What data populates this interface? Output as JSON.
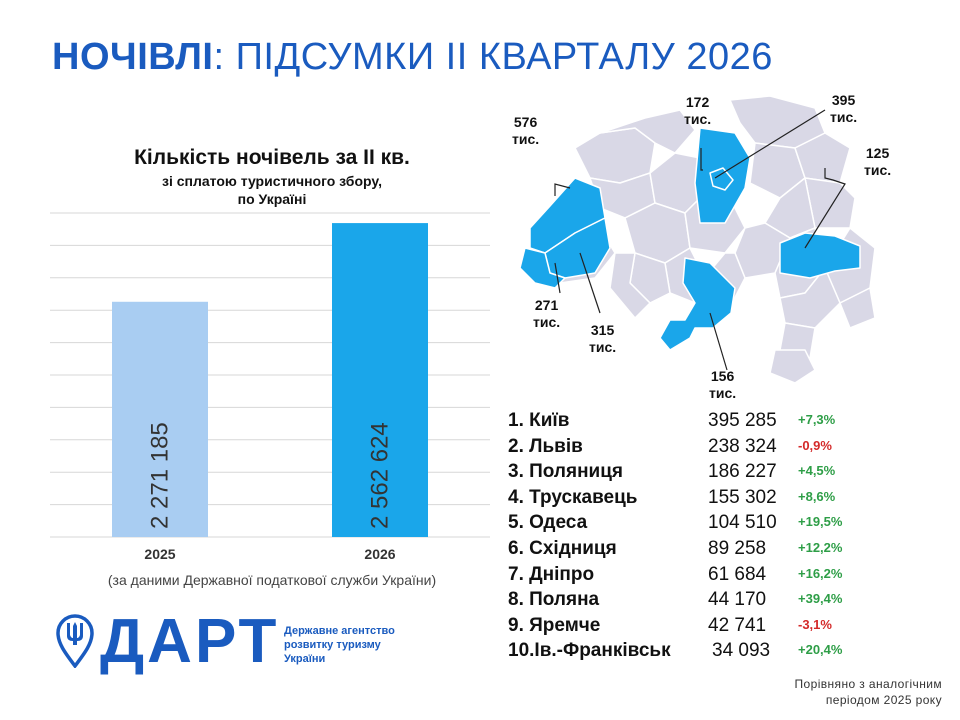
{
  "header": {
    "title_bold": "НОЧІВЛІ",
    "title_rest": ": ПІДСУМКИ ІІ КВАРТАЛУ 2026"
  },
  "chart_data": {
    "type": "bar",
    "title": "Кількість ночівель за ІІ кв.",
    "subtitle_1": "зі сплатою туристичного збору,",
    "subtitle_2": "по Україні",
    "categories": [
      "2025",
      "2026"
    ],
    "values": [
      2271185,
      2562624
    ],
    "value_labels": [
      "2 271 185",
      "2 562 624"
    ],
    "colors": [
      "#a9cdf2",
      "#1aa6ea"
    ],
    "ylim": [
      1400000,
      2600000
    ],
    "grid": true,
    "source": "(за даними Державної податкової служби України)"
  },
  "map": {
    "labels": [
      {
        "value": "576",
        "unit": "тис."
      },
      {
        "value": "172",
        "unit": "тис."
      },
      {
        "value": "395",
        "unit": "тис."
      },
      {
        "value": "125",
        "unit": "тис."
      },
      {
        "value": "271",
        "unit": "тис."
      },
      {
        "value": "315",
        "unit": "тис."
      },
      {
        "value": "156",
        "unit": "тис."
      }
    ],
    "colors": {
      "highlight": "#1aa6ea",
      "base": "#d9d8e6",
      "border": "#ffffff"
    }
  },
  "ranking": [
    {
      "city": "1. Київ",
      "value": "395 285",
      "change": "+7,3%",
      "trend": "up"
    },
    {
      "city": "2. Львів",
      "value": "238 324",
      "change": "-0,9%",
      "trend": "down"
    },
    {
      "city": "3. Поляниця",
      "value": "186 227",
      "change": "+4,5%",
      "trend": "up"
    },
    {
      "city": "4. Трускавець",
      "value": "155 302",
      "change": "+8,6%",
      "trend": "up"
    },
    {
      "city": "5. Одеса",
      "value": "104 510",
      "change": "+19,5%",
      "trend": "up"
    },
    {
      "city": "6. Східниця",
      "value": "89 258",
      "change": "+12,2%",
      "trend": "up"
    },
    {
      "city": "7. Дніпро",
      "value": "61 684",
      "change": "+16,2%",
      "trend": "up"
    },
    {
      "city": "8. Поляна",
      "value": "44 170",
      "change": "+39,4%",
      "trend": "up"
    },
    {
      "city": "9. Яремче",
      "value": "42 741",
      "change": "-3,1%",
      "trend": "down"
    },
    {
      "city": "10.Ів.-Франківськ",
      "value": "34 093",
      "change": "+20,4%",
      "trend": "up"
    }
  ],
  "trend_colors": {
    "up": "#2e9e47",
    "down": "#d42a2a"
  },
  "note": {
    "line1": "Порівняно з аналогічним",
    "line2": "періодом 2025 року"
  },
  "logo": {
    "name": "ДАРТ",
    "agency_line1": "Державне агентство",
    "agency_line2": "розвитку туризму",
    "agency_line3": "України",
    "brand_color": "#1a5bbf"
  }
}
